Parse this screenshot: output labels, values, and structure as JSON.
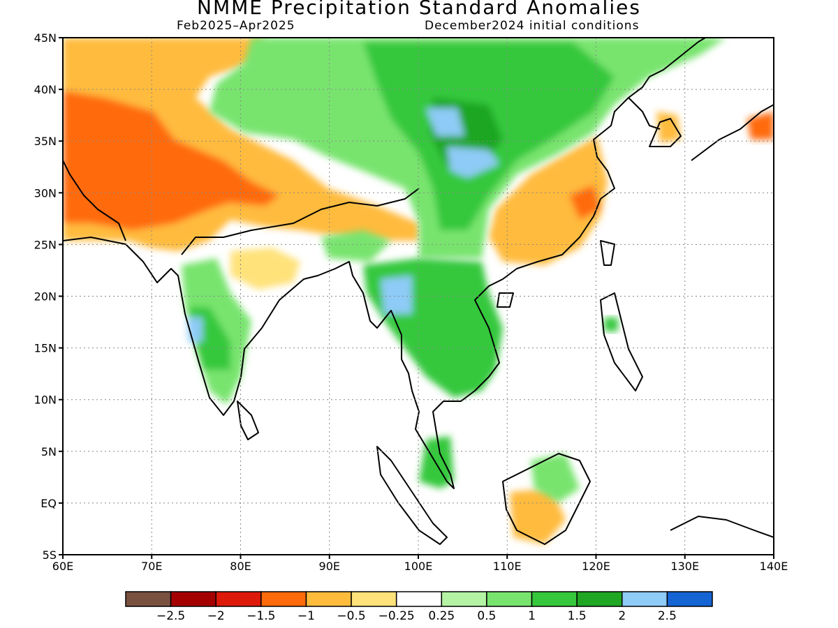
{
  "title": "NMME Precipitation Standard Anomalies",
  "subtitle_left": "Feb2025–Apr2025",
  "subtitle_right": "December2024 initial conditions",
  "map": {
    "lon_range": [
      60,
      140
    ],
    "lat_range": [
      -5,
      45
    ],
    "lon_ticks": [
      "60E",
      "70E",
      "80E",
      "90E",
      "100E",
      "110E",
      "120E",
      "130E",
      "140E"
    ],
    "lat_ticks": [
      "45N",
      "40N",
      "35N",
      "30N",
      "25N",
      "20N",
      "15N",
      "10N",
      "5N",
      "EQ",
      "5S"
    ],
    "grid": "dotted"
  },
  "colorbar": {
    "colors": [
      "#7a5040",
      "#a50000",
      "#dd1a0a",
      "#ff6a0a",
      "#ffbb3c",
      "#ffe27a",
      "#ffffff",
      "#b4f3a4",
      "#78e46e",
      "#36c83c",
      "#1fa623",
      "#8ecbf6",
      "#1564d4"
    ],
    "labels": [
      "−2.5",
      "−2",
      "−1.5",
      "−1",
      "−0.5",
      "−0.25",
      "0.25",
      "0.5",
      "1",
      "1.5",
      "2",
      "2.5"
    ]
  }
}
